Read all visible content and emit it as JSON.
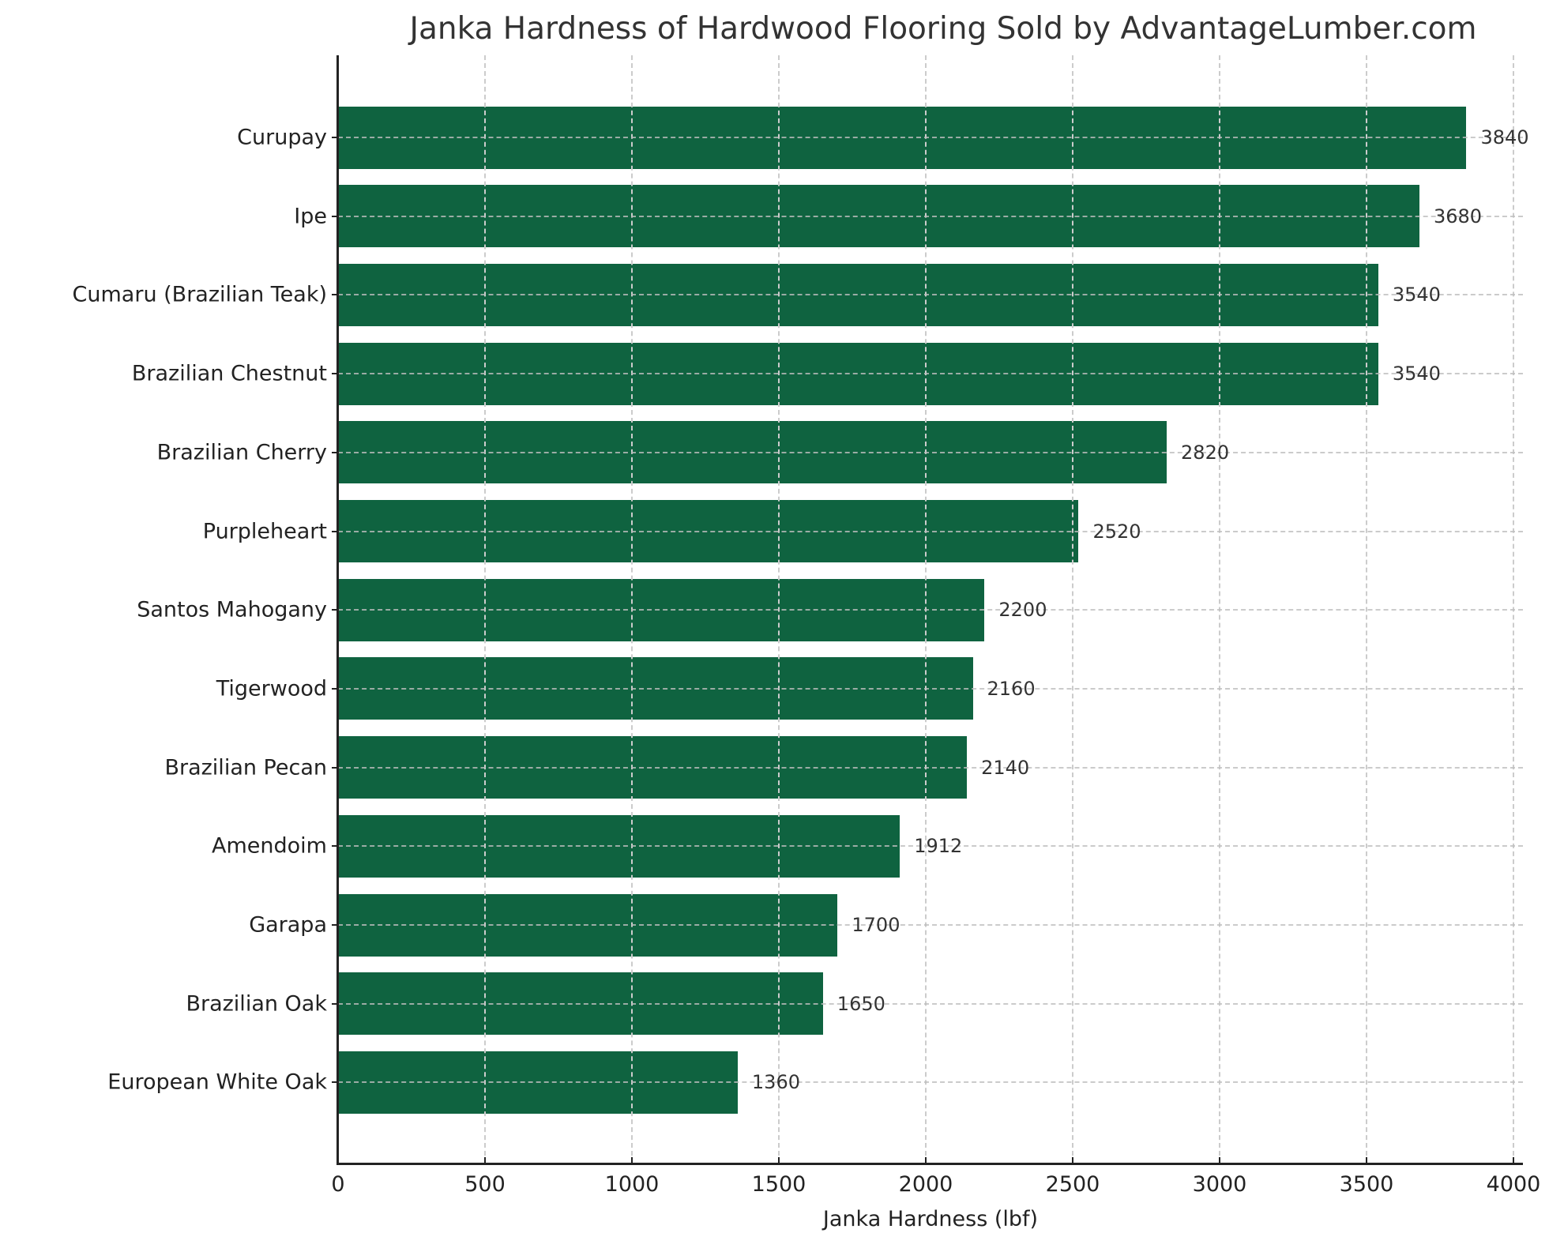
{
  "chart_data": {
    "type": "bar",
    "orientation": "horizontal",
    "title": "Janka Hardness of Hardwood Flooring Sold by AdvantageLumber.com",
    "xlabel": "Janka Hardness (lbf)",
    "ylabel": "",
    "xlim": [
      0,
      4032
    ],
    "xticks": [
      0,
      500,
      1000,
      1500,
      2000,
      2500,
      3000,
      3500,
      4000
    ],
    "grid": true,
    "grid_style": "dashed",
    "bar_color": "#0f6340",
    "categories": [
      "Curupay",
      "Ipe",
      "Cumaru (Brazilian Teak)",
      "Brazilian Chestnut",
      "Brazilian Cherry",
      "Purpleheart",
      "Santos Mahogany",
      "Tigerwood",
      "Brazilian Pecan",
      "Amendoim",
      "Garapa",
      "Brazilian Oak",
      "European White Oak"
    ],
    "values": [
      3840,
      3680,
      3540,
      3540,
      2820,
      2520,
      2200,
      2160,
      2140,
      1912,
      1700,
      1650,
      1360
    ],
    "value_labels": [
      "3840",
      "3680",
      "3540",
      "3540",
      "2820",
      "2520",
      "2200",
      "2160",
      "2140",
      "1912",
      "1700",
      "1650",
      "1360"
    ],
    "legend": null
  }
}
